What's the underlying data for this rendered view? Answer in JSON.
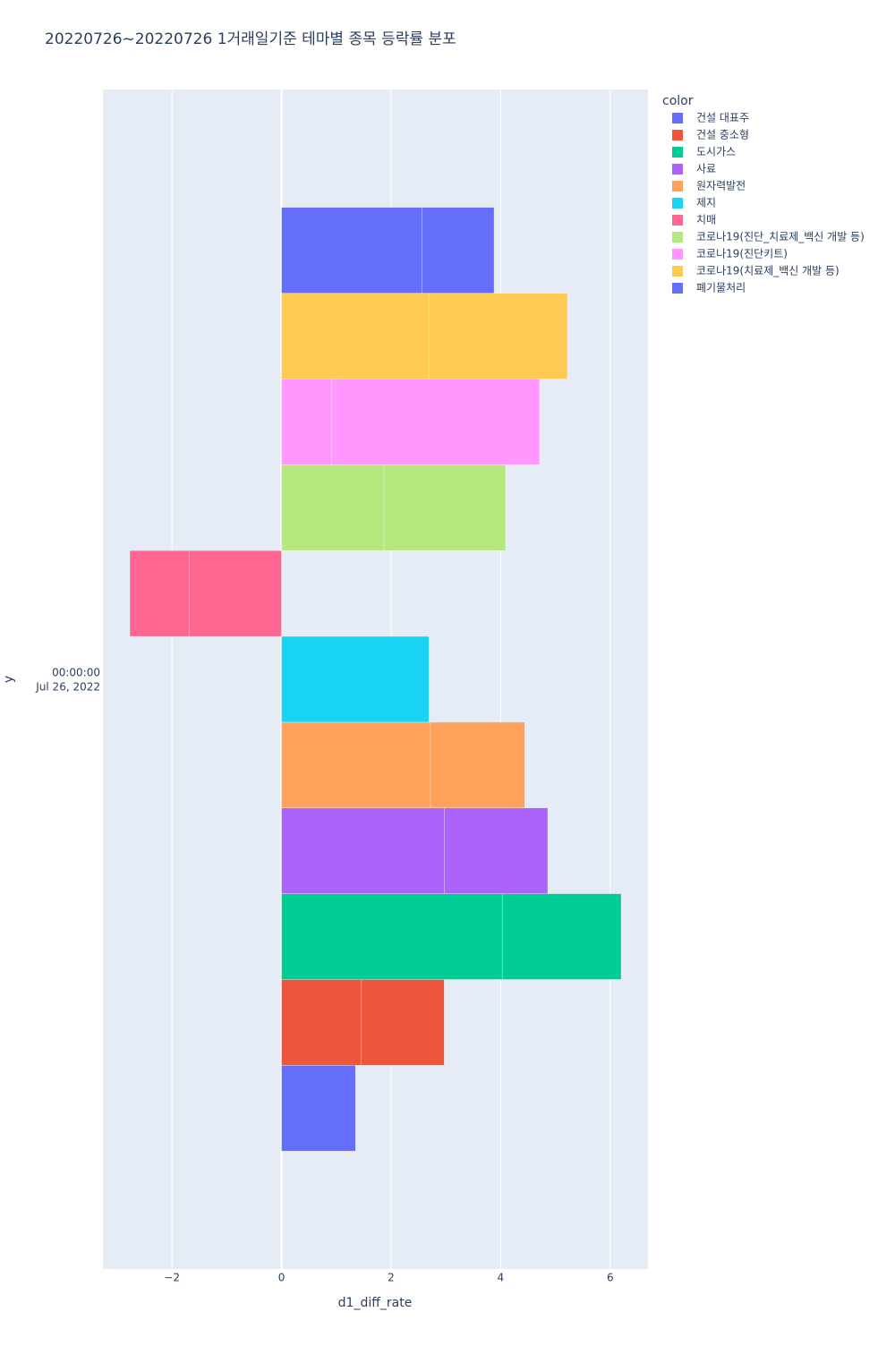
{
  "chart_data": {
    "type": "bar",
    "orientation": "horizontal",
    "title": "20220726~20220726 1거래일기준 테마별 종목 등락률 분포",
    "x_label": "d1_diff_rate",
    "y_label": "y",
    "y_category_label": [
      "00:00:00",
      "Jul 26, 2022"
    ],
    "legend_title": "color",
    "legend_position": "right",
    "xlim": [
      -3.26,
      6.69
    ],
    "xticks": [
      {
        "value": -2,
        "label": "−2"
      },
      0,
      2,
      4,
      6
    ],
    "grid": true,
    "series": [
      {
        "name": "건설 대표주",
        "color": "#636efa",
        "values": [
          1.35
        ]
      },
      {
        "name": "건설 중소형",
        "color": "#EF553B",
        "values": [
          1.45,
          1.52
        ]
      },
      {
        "name": "도시가스",
        "color": "#00cc96",
        "values": [
          4.03,
          2.17
        ]
      },
      {
        "name": "사료",
        "color": "#ab63fa",
        "values": [
          2.97,
          1.89
        ]
      },
      {
        "name": "원자력발전",
        "color": "#FFA15A",
        "values": [
          2.72,
          1.72
        ]
      },
      {
        "name": "제지",
        "color": "#19d3f3",
        "values": [
          2.69
        ]
      },
      {
        "name": "치매",
        "color": "#FF6692",
        "values": [
          -1.69,
          -1.08
        ]
      },
      {
        "name": "코로나19(진단_치료제_백신 개발 등)",
        "color": "#B6E880",
        "values": [
          1.87,
          2.22
        ]
      },
      {
        "name": "코로나19(진단키트)",
        "color": "#FF97FF",
        "values": [
          0.92,
          3.79
        ]
      },
      {
        "name": "코로나19(치료제_백신 개발 등)",
        "color": "#FECB52",
        "values": [
          2.69,
          2.53
        ]
      },
      {
        "name": "폐기물처리",
        "color": "#636efa",
        "values": [
          2.56,
          1.32
        ]
      }
    ]
  }
}
